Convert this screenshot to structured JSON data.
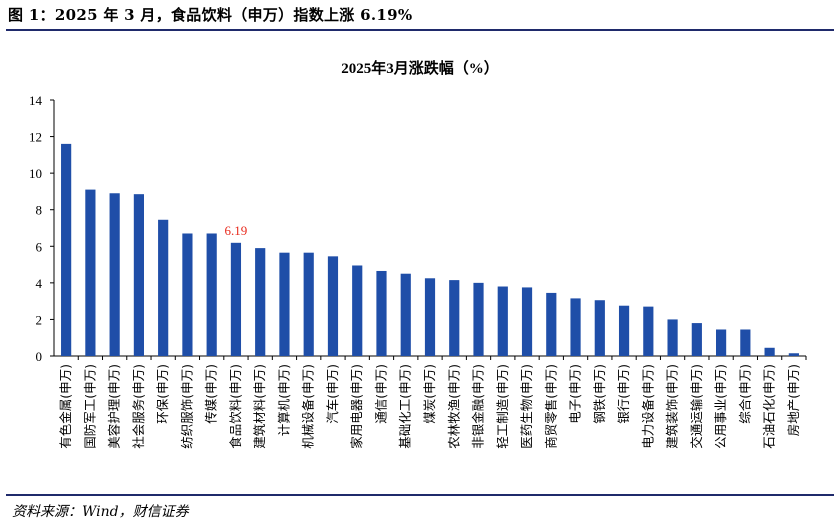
{
  "figure": {
    "title": "图 1：2025 年 3 月，食品饮料（申万）指数上涨 6.19%",
    "source": "资料来源：Wind，财信证券"
  },
  "colors": {
    "bar": "#1f4ea8",
    "annotation": "#e8291c",
    "rule": "#1f2a6b"
  },
  "chart_data": {
    "type": "bar",
    "title": "2025年3月涨跌幅（%）",
    "xlabel": "",
    "ylabel": "",
    "ylim": [
      0,
      14
    ],
    "yticks": [
      0,
      2,
      4,
      6,
      8,
      10,
      12,
      14
    ],
    "grid": false,
    "categories": [
      "有色金属(申万)",
      "国防军工(申万)",
      "美容护理(申万)",
      "社会服务(申万)",
      "环保(申万)",
      "纺织服饰(申万)",
      "传媒(申万)",
      "食品饮料(申万)",
      "建筑材料(申万)",
      "计算机(申万)",
      "机械设备(申万)",
      "汽车(申万)",
      "家用电器(申万)",
      "通信(申万)",
      "基础化工(申万)",
      "煤炭(申万)",
      "农林牧渔(申万)",
      "非银金融(申万)",
      "轻工制造(申万)",
      "医药生物(申万)",
      "商贸零售(申万)",
      "电子(申万)",
      "钢铁(申万)",
      "银行(申万)",
      "电力设备(申万)",
      "建筑装饰(申万)",
      "交通运输(申万)",
      "公用事业(申万)",
      "综合(申万)",
      "石油石化(申万)",
      "房地产(申万)"
    ],
    "values": [
      11.6,
      9.1,
      8.9,
      8.85,
      7.45,
      6.7,
      6.7,
      6.19,
      5.9,
      5.65,
      5.65,
      5.45,
      4.95,
      4.65,
      4.5,
      4.25,
      4.15,
      4.0,
      3.8,
      3.75,
      3.45,
      3.15,
      3.05,
      2.75,
      2.7,
      2.0,
      1.8,
      1.45,
      1.45,
      0.45,
      0.15
    ],
    "annotations": [
      {
        "category": "食品饮料(申万)",
        "label": "6.19"
      }
    ]
  }
}
